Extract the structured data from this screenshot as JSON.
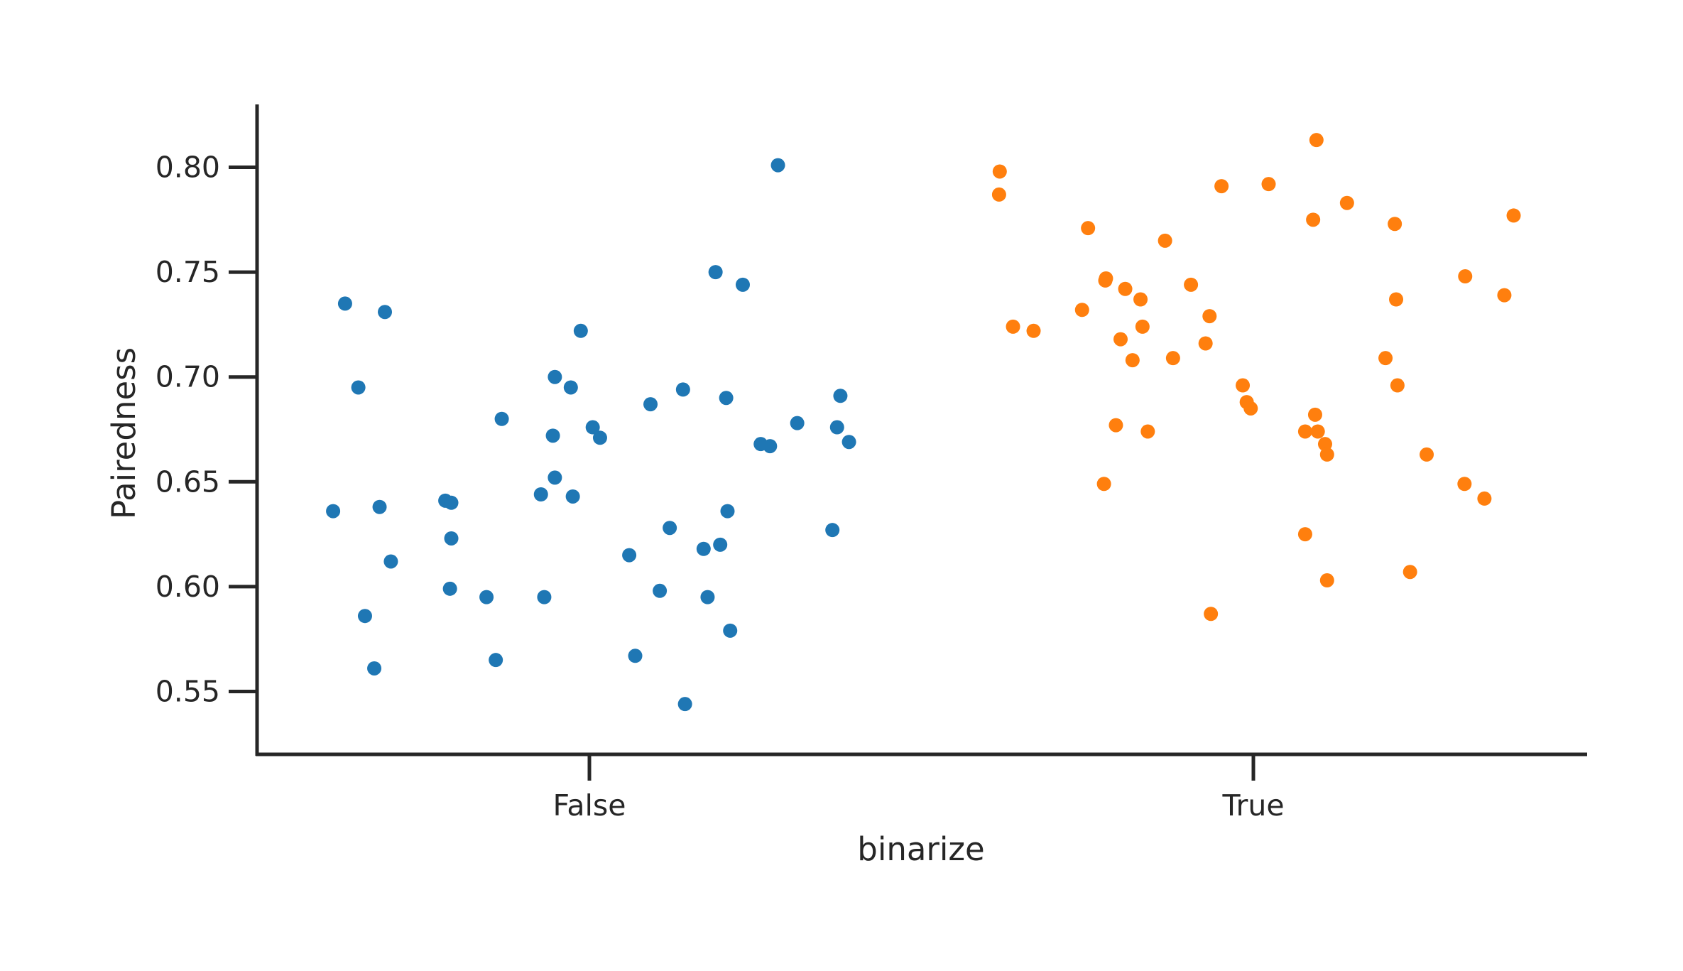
{
  "chart_data": {
    "type": "scatter",
    "subtype": "strip",
    "xlabel": "binarize",
    "ylabel": "Pairedness",
    "categories": [
      "False",
      "True"
    ],
    "ylim": [
      0.52,
      0.83
    ],
    "y_ticks": [
      "0.55",
      "0.60",
      "0.65",
      "0.70",
      "0.75",
      "0.80"
    ],
    "y_tick_values": [
      0.55,
      0.6,
      0.65,
      0.7,
      0.75,
      0.8
    ],
    "grid": false,
    "legend": "none",
    "series": [
      {
        "category": "False",
        "color": "#1f77b4",
        "points": [
          {
            "jitter": -0.386,
            "y": 0.636
          },
          {
            "jitter": -0.368,
            "y": 0.735
          },
          {
            "jitter": -0.348,
            "y": 0.695
          },
          {
            "jitter": -0.338,
            "y": 0.586
          },
          {
            "jitter": -0.324,
            "y": 0.561
          },
          {
            "jitter": -0.316,
            "y": 0.638
          },
          {
            "jitter": -0.308,
            "y": 0.731
          },
          {
            "jitter": -0.299,
            "y": 0.612
          },
          {
            "jitter": -0.217,
            "y": 0.641
          },
          {
            "jitter": -0.208,
            "y": 0.64
          },
          {
            "jitter": -0.208,
            "y": 0.623
          },
          {
            "jitter": -0.21,
            "y": 0.599
          },
          {
            "jitter": -0.155,
            "y": 0.595
          },
          {
            "jitter": -0.141,
            "y": 0.565
          },
          {
            "jitter": -0.132,
            "y": 0.68
          },
          {
            "jitter": -0.073,
            "y": 0.644
          },
          {
            "jitter": -0.068,
            "y": 0.595
          },
          {
            "jitter": -0.055,
            "y": 0.672
          },
          {
            "jitter": -0.052,
            "y": 0.652
          },
          {
            "jitter": -0.052,
            "y": 0.7
          },
          {
            "jitter": -0.028,
            "y": 0.695
          },
          {
            "jitter": -0.025,
            "y": 0.643
          },
          {
            "jitter": -0.013,
            "y": 0.722
          },
          {
            "jitter": 0.005,
            "y": 0.676
          },
          {
            "jitter": 0.016,
            "y": 0.671
          },
          {
            "jitter": 0.06,
            "y": 0.615
          },
          {
            "jitter": 0.069,
            "y": 0.567
          },
          {
            "jitter": 0.092,
            "y": 0.687
          },
          {
            "jitter": 0.106,
            "y": 0.598
          },
          {
            "jitter": 0.121,
            "y": 0.628
          },
          {
            "jitter": 0.141,
            "y": 0.694
          },
          {
            "jitter": 0.144,
            "y": 0.544
          },
          {
            "jitter": 0.172,
            "y": 0.618
          },
          {
            "jitter": 0.178,
            "y": 0.595
          },
          {
            "jitter": 0.19,
            "y": 0.75
          },
          {
            "jitter": 0.197,
            "y": 0.62
          },
          {
            "jitter": 0.206,
            "y": 0.69
          },
          {
            "jitter": 0.208,
            "y": 0.636
          },
          {
            "jitter": 0.212,
            "y": 0.579
          },
          {
            "jitter": 0.231,
            "y": 0.744
          },
          {
            "jitter": 0.258,
            "y": 0.668
          },
          {
            "jitter": 0.272,
            "y": 0.667
          },
          {
            "jitter": 0.284,
            "y": 0.801
          },
          {
            "jitter": 0.313,
            "y": 0.678
          },
          {
            "jitter": 0.366,
            "y": 0.627
          },
          {
            "jitter": 0.373,
            "y": 0.676
          },
          {
            "jitter": 0.378,
            "y": 0.691
          },
          {
            "jitter": 0.391,
            "y": 0.669
          }
        ]
      },
      {
        "category": "True",
        "color": "#ff7f0e",
        "points": [
          {
            "jitter": -0.383,
            "y": 0.787
          },
          {
            "jitter": -0.382,
            "y": 0.798
          },
          {
            "jitter": -0.362,
            "y": 0.724
          },
          {
            "jitter": -0.331,
            "y": 0.722
          },
          {
            "jitter": -0.258,
            "y": 0.732
          },
          {
            "jitter": -0.249,
            "y": 0.771
          },
          {
            "jitter": -0.225,
            "y": 0.649
          },
          {
            "jitter": -0.223,
            "y": 0.746
          },
          {
            "jitter": -0.222,
            "y": 0.747
          },
          {
            "jitter": -0.207,
            "y": 0.677
          },
          {
            "jitter": -0.2,
            "y": 0.718
          },
          {
            "jitter": -0.193,
            "y": 0.742
          },
          {
            "jitter": -0.182,
            "y": 0.708
          },
          {
            "jitter": -0.17,
            "y": 0.737
          },
          {
            "jitter": -0.167,
            "y": 0.724
          },
          {
            "jitter": -0.159,
            "y": 0.674
          },
          {
            "jitter": -0.133,
            "y": 0.765
          },
          {
            "jitter": -0.121,
            "y": 0.709
          },
          {
            "jitter": -0.094,
            "y": 0.744
          },
          {
            "jitter": -0.072,
            "y": 0.716
          },
          {
            "jitter": -0.066,
            "y": 0.729
          },
          {
            "jitter": -0.064,
            "y": 0.587
          },
          {
            "jitter": -0.048,
            "y": 0.791
          },
          {
            "jitter": -0.016,
            "y": 0.696
          },
          {
            "jitter": -0.01,
            "y": 0.688
          },
          {
            "jitter": -0.004,
            "y": 0.685
          },
          {
            "jitter": 0.023,
            "y": 0.792
          },
          {
            "jitter": 0.078,
            "y": 0.674
          },
          {
            "jitter": 0.078,
            "y": 0.625
          },
          {
            "jitter": 0.09,
            "y": 0.775
          },
          {
            "jitter": 0.093,
            "y": 0.682
          },
          {
            "jitter": 0.095,
            "y": 0.813
          },
          {
            "jitter": 0.097,
            "y": 0.674
          },
          {
            "jitter": 0.108,
            "y": 0.668
          },
          {
            "jitter": 0.111,
            "y": 0.603
          },
          {
            "jitter": 0.111,
            "y": 0.663
          },
          {
            "jitter": 0.141,
            "y": 0.783
          },
          {
            "jitter": 0.199,
            "y": 0.709
          },
          {
            "jitter": 0.213,
            "y": 0.773
          },
          {
            "jitter": 0.215,
            "y": 0.737
          },
          {
            "jitter": 0.217,
            "y": 0.696
          },
          {
            "jitter": 0.236,
            "y": 0.607
          },
          {
            "jitter": 0.261,
            "y": 0.663
          },
          {
            "jitter": 0.318,
            "y": 0.649
          },
          {
            "jitter": 0.319,
            "y": 0.748
          },
          {
            "jitter": 0.348,
            "y": 0.642
          },
          {
            "jitter": 0.378,
            "y": 0.739
          },
          {
            "jitter": 0.392,
            "y": 0.777
          }
        ]
      }
    ]
  }
}
